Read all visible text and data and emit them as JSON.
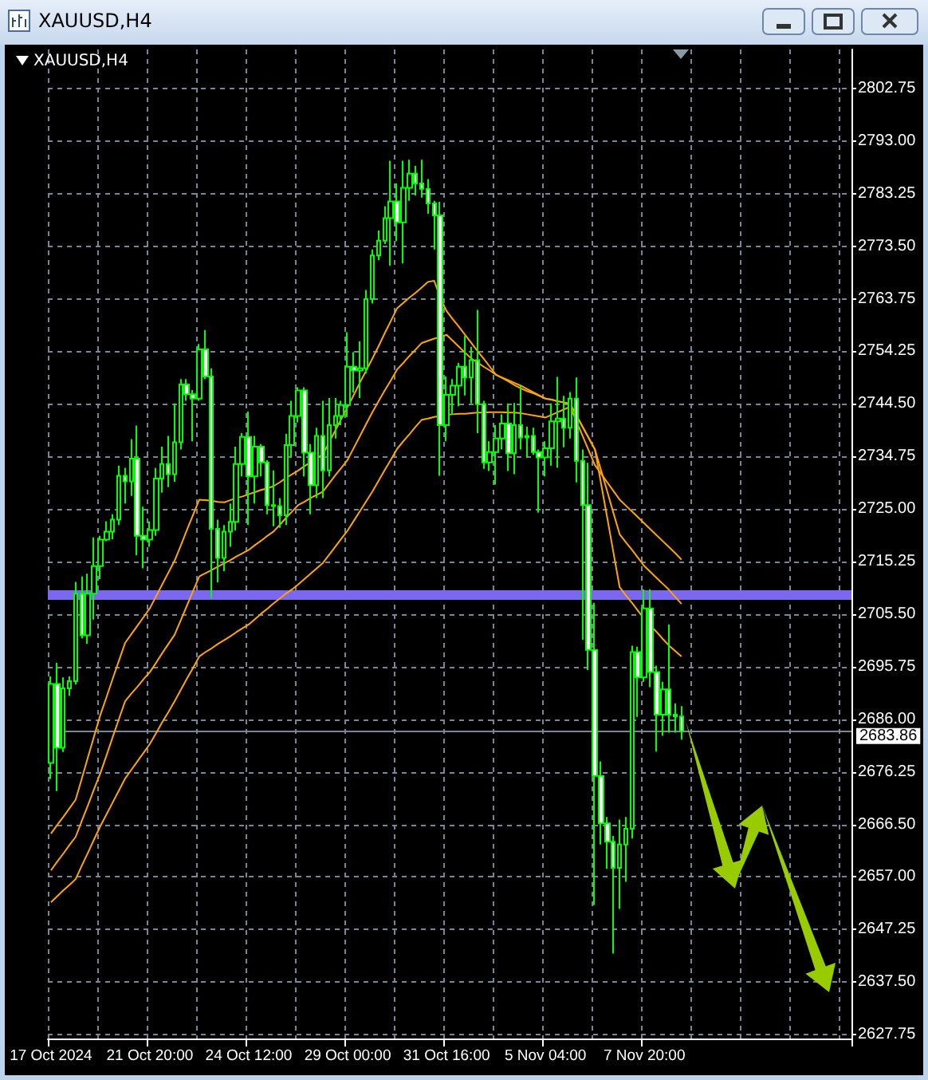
{
  "chart_data": {
    "type": "candlestick",
    "title": "XAUUSD,H4",
    "subtitle": "XAUUSD,H4",
    "categories": [
      "17 Oct 2024",
      null,
      null,
      null,
      null,
      null,
      null,
      null,
      null,
      null,
      null,
      null,
      null,
      null,
      null,
      null,
      "21 Oct 20:00",
      null,
      null,
      null,
      null,
      null,
      null,
      null,
      null,
      null,
      null,
      null,
      null,
      null,
      null,
      null,
      "24 Oct 12:00",
      null,
      null,
      null,
      null,
      null,
      null,
      null,
      null,
      null,
      null,
      null,
      null,
      null,
      null,
      null,
      "29 Oct 00:00",
      null,
      null,
      null,
      null,
      null,
      null,
      null,
      null,
      null,
      null,
      null,
      null,
      null,
      null,
      null,
      "31 Oct 16:00",
      null,
      null,
      null,
      null,
      null,
      null,
      null,
      null,
      null,
      null,
      null,
      null,
      null,
      null,
      null,
      "5 Nov 04:00",
      null,
      null,
      null,
      null,
      null,
      null,
      null,
      null,
      null,
      null,
      null,
      null,
      null,
      null,
      null,
      "7 Nov 20:00",
      null,
      null,
      null,
      null,
      null,
      null,
      null,
      null,
      null,
      null,
      null,
      null,
      null,
      null,
      null,
      null,
      null,
      null,
      null,
      null,
      null,
      null,
      null,
      null,
      null,
      null,
      null,
      null,
      null,
      null,
      null,
      null,
      null
    ],
    "ylim": [
      2627,
      2810
    ],
    "yticks": [
      {
        "value": 2627.75,
        "label": "2627.75"
      },
      {
        "value": 2637.5,
        "label": "2637.50"
      },
      {
        "value": 2647.25,
        "label": "2647.25"
      },
      {
        "value": 2657,
        "label": "2657.00"
      },
      {
        "value": 2666.5,
        "label": "2666.50"
      },
      {
        "value": 2676.25,
        "label": "2676.25"
      },
      {
        "value": 2686,
        "label": "2686.00"
      },
      {
        "value": 2695.75,
        "label": "2695.75"
      },
      {
        "value": 2705.5,
        "label": "2705.50"
      },
      {
        "value": 2715.25,
        "label": "2715.25"
      },
      {
        "value": 2725,
        "label": "2725.00"
      },
      {
        "value": 2734.75,
        "label": "2734.75"
      },
      {
        "value": 2744.5,
        "label": "2744.50"
      },
      {
        "value": 2754.25,
        "label": "2754.25"
      },
      {
        "value": 2763.75,
        "label": "2763.75"
      },
      {
        "value": 2773.5,
        "label": "2773.50"
      },
      {
        "value": 2783.25,
        "label": "2783.25"
      },
      {
        "value": 2793,
        "label": "2793.00"
      },
      {
        "value": 2802.75,
        "label": "2802.75"
      }
    ],
    "grid": true,
    "ref_lines": [
      {
        "axis": "y",
        "value": 2709.2,
        "label": null,
        "color": "#7b68ee"
      },
      {
        "axis": "y",
        "value": 2683.86,
        "label": "2683.86",
        "color": "#778899"
      }
    ],
    "series": [
      {
        "type": "line",
        "color": "#ffa500",
        "marker": "none",
        "line_style": "solid",
        "values": [
          2664.9,
          2666.5,
          2668.0,
          2669.6,
          2671.2,
          2675.1,
          2679.1,
          2683.0,
          2686.9,
          2690.2,
          2693.6,
          2696.9,
          2700.2,
          2701.8,
          2703.4,
          2705.0,
          2706.6,
          2708.8,
          2711.0,
          2713.2,
          2715.4,
          2718.2,
          2721.1,
          2723.9,
          2726.7,
          2726.6,
          2726.5,
          2726.3,
          2726.2,
          2726.6,
          2727.0,
          2727.3,
          2727.7,
          2728.1,
          2728.5,
          2728.8,
          2729.2,
          2729.9,
          2730.7,
          2731.4,
          2732.1,
          2732.9,
          2733.6,
          2734.4,
          2735.1,
          2737.3,
          2739.5,
          2741.7,
          2743.9,
          2746.1,
          2748.4,
          2750.6,
          2752.8,
          2755.1,
          2757.5,
          2759.8,
          2762.1,
          2763.1,
          2764.1,
          2765.0,
          2766,
          2767,
          2767.2,
          2764,
          2761.6,
          2760.1,
          2758.7,
          2757.2,
          2755.7,
          2754.2,
          2752.8,
          2751.3,
          2749.8,
          2749.2,
          2748.6,
          2747.9,
          2747.3,
          2746.8,
          2746.4,
          2745.9,
          2745.4,
          2745.2,
          2744.9,
          2744.7,
          2744.4,
          2742.3,
          2740.2,
          2738.1,
          2736,
          2729.6,
          2723.3,
          2716.9,
          2710.5,
          2709.0,
          2707.6,
          2706.1,
          2704.6,
          2703.4,
          2702.2,
          2700.9,
          2699.7,
          2698.7,
          2697.7,
          null,
          null,
          null,
          null,
          null,
          null,
          null,
          null,
          null,
          null,
          null,
          null,
          null,
          null,
          null,
          null,
          null,
          null,
          null,
          null,
          null,
          null,
          null,
          null,
          null,
          null,
          null
        ]
      },
      {
        "type": "line",
        "color": "#ffa500",
        "marker": "none",
        "line_style": "solid",
        "values": [
          2658.1,
          2659.7,
          2661.2,
          2662.8,
          2664.3,
          2667.3,
          2670.2,
          2673.2,
          2676.1,
          2679.4,
          2682.8,
          2686.1,
          2689.4,
          2690.8,
          2692.1,
          2693.5,
          2694.8,
          2696.5,
          2698.3,
          2700.0,
          2701.7,
          2704.4,
          2707.1,
          2709.8,
          2712.5,
          2713.1,
          2713.7,
          2714.3,
          2714.9,
          2715.5,
          2716.2,
          2716.8,
          2717.4,
          2718.3,
          2719.1,
          2720.0,
          2720.8,
          2722.0,
          2723.3,
          2724.5,
          2725.7,
          2726.3,
          2727.0,
          2727.6,
          2728.2,
          2729.7,
          2731.2,
          2732.6,
          2734.1,
          2736.3,
          2738.5,
          2740.7,
          2742.9,
          2744.9,
          2746.9,
          2748.8,
          2750.8,
          2752.0,
          2753.3,
          2754.5,
          2755.7,
          2756.1,
          2756.5,
          2756.8,
          2757.2,
          2756.1,
          2755.0,
          2753.9,
          2752.8,
          2752.1,
          2751.3,
          2750.6,
          2749.8,
          2749.3,
          2748.8,
          2748.3,
          2747.8,
          2747.2,
          2746.6,
          2746.0,
          2745.4,
          2745.2,
          2744.9,
          2744.7,
          2744.4,
          2742.3,
          2740.2,
          2738.1,
          2736,
          2732.1,
          2728.2,
          2724.2,
          2720.3,
          2718.8,
          2717.4,
          2715.9,
          2714.4,
          2713.3,
          2712.2,
          2711.1,
          2710,
          2708.7,
          2707.4,
          null,
          null,
          null,
          null,
          null,
          null,
          null,
          null,
          null,
          null,
          null,
          null,
          null,
          null,
          null,
          null,
          null,
          null,
          null,
          null,
          null,
          null,
          null,
          null,
          null,
          null,
          null
        ]
      },
      {
        "type": "line",
        "color": "#ffa500",
        "marker": "none",
        "line_style": "solid",
        "values": [
          2652.2,
          2653.3,
          2654.4,
          2655.4,
          2656.5,
          2659.0,
          2661.4,
          2663.9,
          2666.3,
          2668.5,
          2670.7,
          2672.9,
          2675.1,
          2676.7,
          2678.3,
          2679.9,
          2681.5,
          2683.5,
          2685.5,
          2687.4,
          2689.4,
          2691.5,
          2693.6,
          2695.6,
          2697.7,
          2698.5,
          2699.2,
          2700.0,
          2700.7,
          2701.4,
          2702.2,
          2702.9,
          2703.6,
          2704.6,
          2705.6,
          2706.5,
          2707.5,
          2708.4,
          2709.3,
          2710.1,
          2711,
          2712.0,
          2713.0,
          2714.0,
          2715,
          2716.5,
          2718.0,
          2719.5,
          2721,
          2722.8,
          2724.6,
          2726.4,
          2728.2,
          2730.2,
          2732.2,
          2734.1,
          2736.1,
          2737.5,
          2738.8,
          2740.2,
          2741.5,
          2741.7,
          2742.0,
          2742.2,
          2742.4,
          2742.5,
          2742.6,
          2742.6,
          2742.7,
          2742.8,
          2742.8,
          2742.9,
          2742.9,
          2742.9,
          2742.8,
          2742.8,
          2742.7,
          2742.5,
          2742.3,
          2742.1,
          2741.9,
          2742.4,
          2742.9,
          2743.4,
          2743.9,
          2741.2,
          2738.5,
          2735.8,
          2733.1,
          2731.5,
          2729.9,
          2728.3,
          2726.7,
          2725.6,
          2724.5,
          2723.4,
          2722.3,
          2721.2,
          2720.1,
          2719.0,
          2717.9,
          2716.8,
          2715.6,
          null,
          null,
          null,
          null,
          null,
          null,
          null,
          null,
          null,
          null,
          null,
          null,
          null,
          null,
          null,
          null,
          null,
          null,
          null,
          null,
          null,
          null,
          null,
          null,
          null,
          null,
          null
        ]
      },
      {
        "type": "candlestick",
        "color": "#00ff00",
        "ohlc": [
          [
            2678,
            2694,
            2675,
            2692.6
          ],
          [
            2692.6,
            2696.5,
            2672.8,
            2680.8
          ],
          [
            2680.8,
            2693.8,
            2680,
            2691.8
          ],
          [
            2691.8,
            2694,
            2690.4,
            2693.1
          ],
          [
            2693.1,
            2711.5,
            2692.5,
            2709.3
          ],
          [
            2709.3,
            2712.5,
            2701,
            2701.6
          ],
          [
            2701.6,
            2713,
            2700,
            2709.3
          ],
          [
            2709.3,
            2719.7,
            2704.5,
            2714.4
          ],
          [
            2714.4,
            2720,
            2712,
            2719.3
          ],
          [
            2719.3,
            2722.7,
            2719,
            2720.8
          ],
          [
            2720.8,
            2724,
            2719.4,
            2723
          ],
          [
            2723,
            2733,
            2722,
            2731.1
          ],
          [
            2731.1,
            2732.6,
            2726,
            2730.1
          ],
          [
            2730.1,
            2737.9,
            2727.4,
            2734.3
          ],
          [
            2734.3,
            2740.4,
            2716.4,
            2720
          ],
          [
            2720,
            2725.4,
            2714,
            2719.3
          ],
          [
            2719.3,
            2722.7,
            2718,
            2721.1
          ],
          [
            2721.1,
            2732.6,
            2720,
            2730.6
          ],
          [
            2730.6,
            2736.5,
            2728,
            2733.3
          ],
          [
            2733.3,
            2738.5,
            2729,
            2731.4
          ],
          [
            2731.4,
            2744.5,
            2730,
            2737.3
          ],
          [
            2737.3,
            2749,
            2736,
            2748
          ],
          [
            2748,
            2749,
            2745,
            2746.2
          ],
          [
            2746.2,
            2747,
            2737.5,
            2745.4
          ],
          [
            2745.4,
            2755.5,
            2745,
            2754.5
          ],
          [
            2754.5,
            2758.1,
            2749,
            2749.5
          ],
          [
            2749.5,
            2751,
            2708.5,
            2721.3
          ],
          [
            2721.3,
            2723,
            2711.4,
            2715.9
          ],
          [
            2715.9,
            2722,
            2713.5,
            2720.8
          ],
          [
            2720.8,
            2726,
            2718,
            2722.6
          ],
          [
            2722.6,
            2736.5,
            2721,
            2733.3
          ],
          [
            2733.3,
            2739,
            2731,
            2738.3
          ],
          [
            2738.3,
            2743,
            2722,
            2731
          ],
          [
            2731,
            2738.5,
            2726,
            2736.5
          ],
          [
            2736.5,
            2737,
            2731,
            2733.6
          ],
          [
            2733.6,
            2734,
            2724,
            2725.7
          ],
          [
            2725.7,
            2732.1,
            2721.8,
            2725.5
          ],
          [
            2725.5,
            2727,
            2721.5,
            2723.8
          ],
          [
            2723.8,
            2738.9,
            2722,
            2736.8
          ],
          [
            2736.8,
            2745,
            2734.5,
            2742.2
          ],
          [
            2742.2,
            2747.5,
            2741,
            2746.9
          ],
          [
            2746.9,
            2747.5,
            2731,
            2735.4
          ],
          [
            2735.4,
            2737,
            2724,
            2729.4
          ],
          [
            2729.4,
            2740,
            2727,
            2738.5
          ],
          [
            2738.5,
            2745,
            2727,
            2732.1
          ],
          [
            2732.1,
            2745.5,
            2731,
            2740.5
          ],
          [
            2740.5,
            2745.5,
            2738,
            2742.2
          ],
          [
            2742.2,
            2745,
            2740.5,
            2744.2
          ],
          [
            2744.2,
            2757.7,
            2742,
            2751.3
          ],
          [
            2751.3,
            2754,
            2746.5,
            2750.6
          ],
          [
            2750.6,
            2756,
            2745.5,
            2751
          ],
          [
            2751,
            2765.5,
            2750,
            2763.8
          ],
          [
            2763.8,
            2773,
            2763,
            2771.9
          ],
          [
            2771.9,
            2776.5,
            2771,
            2774.6
          ],
          [
            2774.6,
            2781,
            2774,
            2778.8
          ],
          [
            2778.8,
            2789.4,
            2770,
            2781.9
          ],
          [
            2781.9,
            2785.2,
            2774.5,
            2778
          ],
          [
            2778,
            2789.4,
            2770.4,
            2784.4
          ],
          [
            2784.4,
            2789.6,
            2782,
            2787
          ],
          [
            2787,
            2788.5,
            2783,
            2785.2
          ],
          [
            2785.2,
            2789.6,
            2782.6,
            2784.2
          ],
          [
            2784.2,
            2786,
            2779.6,
            2781.5
          ],
          [
            2781.5,
            2782,
            2773,
            2779.3
          ],
          [
            2779.3,
            2781.8,
            2731.1,
            2740.5
          ],
          [
            2740.5,
            2749.5,
            2737.5,
            2746.1
          ],
          [
            2746.1,
            2749,
            2742.4,
            2747.8
          ],
          [
            2747.8,
            2752,
            2744,
            2751.3
          ],
          [
            2751.3,
            2757,
            2746,
            2749.3
          ],
          [
            2749.3,
            2755,
            2744.5,
            2752.5
          ],
          [
            2752.5,
            2761.8,
            2739,
            2744.4
          ],
          [
            2744.4,
            2745,
            2732.4,
            2733.6
          ],
          [
            2733.6,
            2737.5,
            2732,
            2735.5
          ],
          [
            2735.5,
            2740.5,
            2729.5,
            2738
          ],
          [
            2738,
            2742.5,
            2736,
            2740.8
          ],
          [
            2740.8,
            2744.5,
            2732,
            2735.3
          ],
          [
            2735.3,
            2744.6,
            2731.4,
            2740.5
          ],
          [
            2740.5,
            2747.8,
            2736,
            2738.2
          ],
          [
            2738.2,
            2740.2,
            2734.5,
            2738.5
          ],
          [
            2738.5,
            2740,
            2735,
            2735.5
          ],
          [
            2735.5,
            2736,
            2724.3,
            2734.5
          ],
          [
            2734.5,
            2737.5,
            2731,
            2736.2
          ],
          [
            2736.2,
            2744.5,
            2733,
            2741.2
          ],
          [
            2741.2,
            2749.4,
            2732.6,
            2741.7
          ],
          [
            2741.7,
            2745.9,
            2736.4,
            2740
          ],
          [
            2740,
            2746.6,
            2738,
            2745.4
          ],
          [
            2745.4,
            2749.3,
            2729.9,
            2733.9
          ],
          [
            2733.9,
            2736,
            2700.8,
            2725.7
          ],
          [
            2725.7,
            2733.5,
            2695.2,
            2698.9
          ],
          [
            2698.9,
            2707.6,
            2651.7,
            2675.6
          ],
          [
            2675.6,
            2678.3,
            2662.9,
            2666.8
          ],
          [
            2666.8,
            2668,
            2658.4,
            2663.4
          ],
          [
            2663.4,
            2664.5,
            2642.7,
            2658.6
          ],
          [
            2658.6,
            2667.5,
            2651,
            2662.9
          ],
          [
            2662.9,
            2668,
            2656,
            2665.8
          ],
          [
            2665.8,
            2699.7,
            2664,
            2698.5
          ],
          [
            2698.5,
            2699.5,
            2686.5,
            2693.8
          ],
          [
            2693.8,
            2710.1,
            2693,
            2706.6
          ],
          [
            2706.6,
            2710.1,
            2692,
            2694.8
          ],
          [
            2694.8,
            2696,
            2680.1,
            2686.9
          ],
          [
            2686.9,
            2693,
            2683,
            2691.6
          ],
          [
            2691.6,
            2703.6,
            2683.6,
            2686.9
          ],
          [
            2686.9,
            2689,
            2683.6,
            2686.6
          ],
          [
            2686.6,
            2688.5,
            2682.3,
            2683.86
          ],
          null,
          null,
          null,
          null,
          null,
          null,
          null,
          null,
          null,
          null,
          null,
          null,
          null,
          null,
          null,
          null,
          null,
          null,
          null,
          null,
          null,
          null,
          null,
          null,
          null,
          null,
          null
        ]
      }
    ]
  }
}
